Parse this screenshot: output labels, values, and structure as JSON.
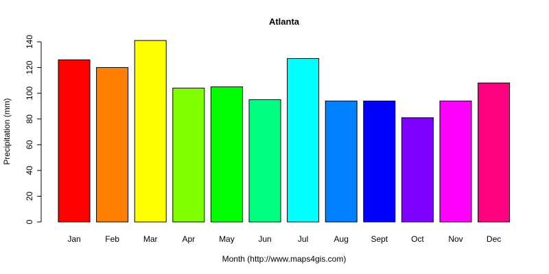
{
  "chart_data": {
    "type": "bar",
    "title": "Atlanta",
    "xlabel": "Month (http://www.maps4gis.com)",
    "ylabel": "Precipitation (mm)",
    "ylim": [
      0,
      140
    ],
    "yticks": [
      0,
      20,
      40,
      60,
      80,
      100,
      120,
      140
    ],
    "categories": [
      "Jan",
      "Feb",
      "Mar",
      "Apr",
      "May",
      "Jun",
      "Jul",
      "Aug",
      "Sept",
      "Oct",
      "Nov",
      "Dec"
    ],
    "values": [
      126,
      120,
      141,
      104,
      105,
      95,
      127,
      94,
      94,
      81,
      94,
      108
    ],
    "colors": [
      "#FF0000",
      "#FF8000",
      "#FFFF00",
      "#80FF00",
      "#00FF00",
      "#00FF80",
      "#00FFFF",
      "#0080FF",
      "#0000FF",
      "#8000FF",
      "#FF00FF",
      "#FF0080"
    ],
    "grid": false,
    "legend": "none"
  }
}
